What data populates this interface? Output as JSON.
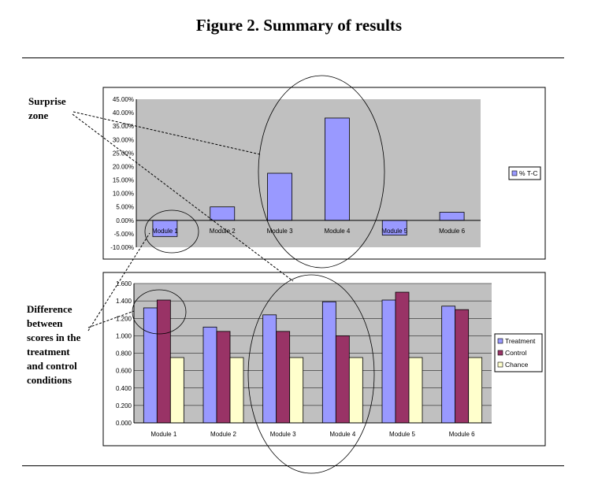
{
  "page": {
    "title": "Figure 2. Summary of results"
  },
  "annotations": {
    "surprise_zone": [
      "Surprise",
      "zone"
    ],
    "difference": [
      "Difference",
      "between",
      "scores in the",
      "treatment",
      "and control",
      "conditions"
    ]
  },
  "colors": {
    "plot_bg": "#c0c0c0",
    "treatment": "#9999ff",
    "control": "#993366",
    "chance": "#ffffcc",
    "pct": "#9999ff"
  },
  "chart_data": [
    {
      "type": "bar",
      "categories": [
        "Module 1",
        "Module 2",
        "Module 3",
        "Module 4",
        "Module 5",
        "Module 6"
      ],
      "series": [
        {
          "name": "% T-C",
          "values": [
            -6.0,
            5.0,
            17.5,
            38.0,
            -5.5,
            3.0
          ]
        }
      ],
      "ylim": [
        -10,
        45
      ],
      "yticks": [
        "45.00%",
        "40.00%",
        "35.00%",
        "30.00%",
        "25.00%",
        "20.00%",
        "15.00%",
        "10.00%",
        "5.00%",
        "0.00%",
        "-5.00%",
        "-10.00%"
      ],
      "legend": "right",
      "grid": false
    },
    {
      "type": "bar",
      "categories": [
        "Module 1",
        "Module 2",
        "Module 3",
        "Module 4",
        "Module 5",
        "Module 6"
      ],
      "series": [
        {
          "name": "Treatment",
          "values": [
            1.32,
            1.1,
            1.24,
            1.39,
            1.41,
            1.34
          ]
        },
        {
          "name": "Control",
          "values": [
            1.41,
            1.05,
            1.05,
            1.0,
            1.5,
            1.3
          ]
        },
        {
          "name": "Chance",
          "values": [
            0.75,
            0.75,
            0.75,
            0.75,
            0.75,
            0.75
          ]
        }
      ],
      "ylim": [
        0,
        1.6
      ],
      "yticks": [
        "1.600",
        "1.400",
        "1.200",
        "1.000",
        "0.800",
        "0.600",
        "0.400",
        "0.200",
        "0.000"
      ],
      "legend": "right",
      "grid": true
    }
  ]
}
